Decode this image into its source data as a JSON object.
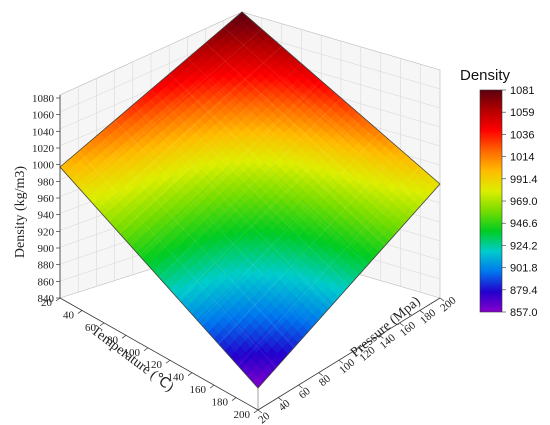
{
  "chart_data": {
    "type": "surface",
    "zlabel": "Density (kg/m3)",
    "xlabel": "Temperature (℃)",
    "ylabel": "Pressure (Mpa)",
    "x_ticks": [
      "20",
      "40",
      "60",
      "80",
      "100",
      "120",
      "140",
      "160",
      "180",
      "200"
    ],
    "y_ticks": [
      "20",
      "40",
      "60",
      "80",
      "100",
      "120",
      "140",
      "160",
      "180",
      "200"
    ],
    "z_ticks": [
      "840",
      "860",
      "880",
      "900",
      "920",
      "940",
      "960",
      "980",
      "1000",
      "1020",
      "1040",
      "1060",
      "1080"
    ],
    "xlim": [
      20,
      200
    ],
    "ylim": [
      20,
      200
    ],
    "zlim": [
      840,
      1080
    ],
    "corner_values": [
      {
        "temperature": 20,
        "pressure": 20,
        "density": 1000
      },
      {
        "temperature": 20,
        "pressure": 200,
        "density": 1081
      },
      {
        "temperature": 200,
        "pressure": 20,
        "density": 857
      },
      {
        "temperature": 200,
        "pressure": 200,
        "density": 985
      }
    ],
    "legend": {
      "title": "Density",
      "labels": [
        "1081",
        "1059",
        "1036",
        "1014",
        "991.4",
        "969.0",
        "946.6",
        "924.2",
        "901.8",
        "879.4",
        "857.0"
      ],
      "colormap": [
        "#5a0010",
        "#b40000",
        "#ff0000",
        "#ff6600",
        "#ffbb00",
        "#ddee00",
        "#77dd00",
        "#00cc22",
        "#00cccc",
        "#0077ee",
        "#2200cc",
        "#8800cc"
      ]
    },
    "grid": true
  }
}
